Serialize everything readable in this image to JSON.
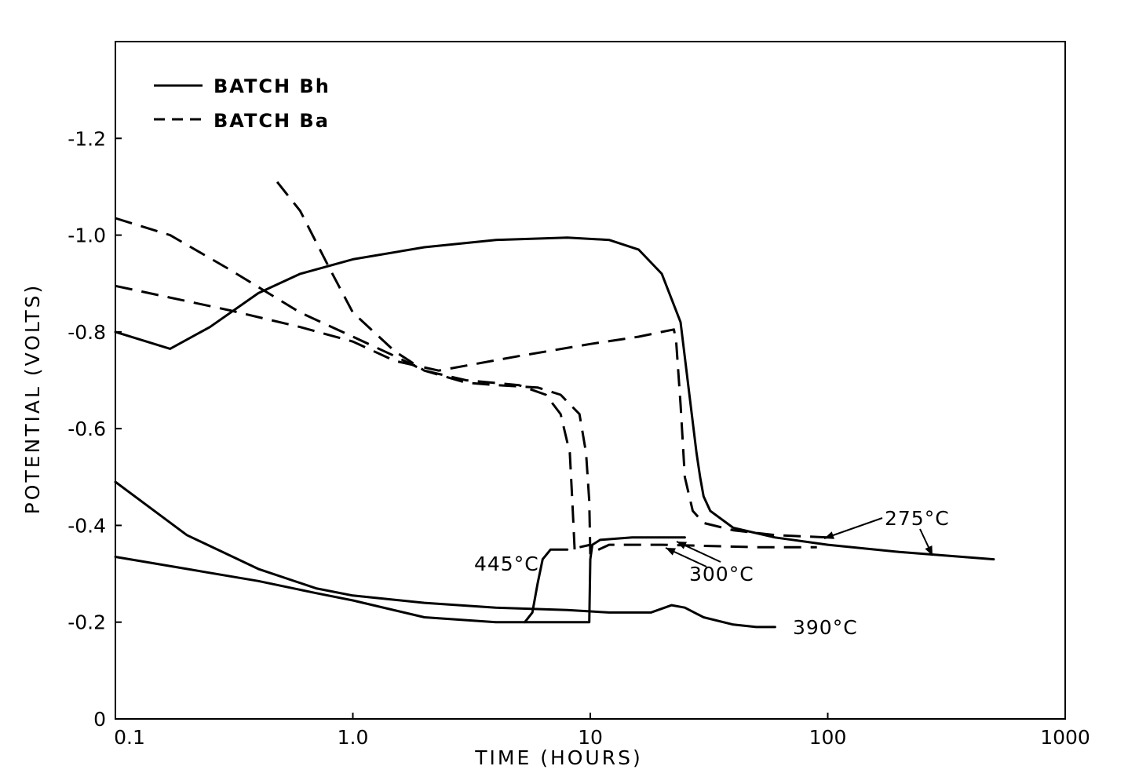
{
  "chart_data": {
    "type": "line",
    "title": "",
    "xlabel": "TIME (HOURS)",
    "ylabel": "POTENTIAL (VOLTS)",
    "x_scale": "log",
    "xlim": [
      0.1,
      1000
    ],
    "ylim": [
      0,
      -1.4
    ],
    "x_ticks": [
      "0.1",
      "1.0",
      "10",
      "100",
      "1000"
    ],
    "y_ticks": [
      "0",
      "-0.2",
      "-0.4",
      "-0.6",
      "-0.8",
      "-1.0",
      "-1.2"
    ],
    "grid": false,
    "legend_position": "top-left",
    "legend": [
      {
        "label": "BATCH Bh",
        "style": "solid"
      },
      {
        "label": "BATCH Ba",
        "style": "dashed"
      }
    ],
    "annotations": [
      "275°C",
      "300°C",
      "390°C",
      "445°C"
    ],
    "series": [
      {
        "batch": "BATCH Bh",
        "style": "solid",
        "temperature": "275°C",
        "x": [
          0.1,
          0.17,
          0.25,
          0.4,
          0.6,
          1.0,
          2.0,
          4.0,
          8.0,
          12,
          16,
          20,
          24,
          26,
          28,
          29,
          30,
          32,
          40,
          60,
          100,
          200,
          500
        ],
        "y": [
          -0.8,
          -0.765,
          -0.81,
          -0.88,
          -0.92,
          -0.95,
          -0.975,
          -0.99,
          -0.995,
          -0.99,
          -0.97,
          -0.92,
          -0.82,
          -0.68,
          -0.55,
          -0.5,
          -0.46,
          -0.43,
          -0.395,
          -0.375,
          -0.36,
          -0.345,
          -0.33
        ]
      },
      {
        "batch": "BATCH Ba",
        "style": "dashed",
        "temperature": "275°C",
        "x": [
          0.1,
          0.3,
          0.6,
          1.0,
          1.5,
          2.3,
          5.0,
          10,
          16,
          20,
          22.5,
          23,
          24,
          25,
          27,
          30,
          40,
          60,
          100
        ],
        "y": [
          -0.895,
          -0.845,
          -0.81,
          -0.78,
          -0.74,
          -0.72,
          -0.75,
          -0.775,
          -0.79,
          -0.8,
          -0.805,
          -0.78,
          -0.65,
          -0.5,
          -0.43,
          -0.405,
          -0.39,
          -0.38,
          -0.375
        ]
      },
      {
        "batch": "BATCH Bh",
        "style": "solid",
        "temperature": "300°C",
        "x": [
          0.1,
          0.2,
          0.4,
          0.7,
          1.0,
          2.0,
          4.0,
          6.0,
          8.0,
          9.0,
          9.5,
          9.9,
          10,
          10.2,
          11,
          15,
          20,
          25
        ],
        "y": [
          -0.335,
          -0.31,
          -0.285,
          -0.26,
          -0.245,
          -0.21,
          -0.2,
          -0.2,
          -0.2,
          -0.2,
          -0.2,
          -0.2,
          -0.33,
          -0.36,
          -0.37,
          -0.375,
          -0.375,
          -0.375
        ]
      },
      {
        "batch": "BATCH Ba",
        "style": "dashed",
        "temperature": "300°C",
        "x": [
          0.48,
          0.6,
          0.8,
          1.0,
          1.5,
          2.0,
          3.0,
          4.0,
          6.0,
          7.5,
          9.0,
          9.6,
          9.9,
          10,
          10.3,
          12,
          20,
          50,
          90
        ],
        "y": [
          -1.11,
          -1.05,
          -0.93,
          -0.84,
          -0.76,
          -0.72,
          -0.695,
          -0.69,
          -0.685,
          -0.67,
          -0.63,
          -0.55,
          -0.45,
          -0.34,
          -0.345,
          -0.36,
          -0.36,
          -0.355,
          -0.355
        ]
      },
      {
        "batch": "BATCH Ba",
        "style": "dashed",
        "temperature": "390°C",
        "x": [
          0.1,
          0.17,
          0.3,
          0.6,
          1.0,
          1.5,
          2.0,
          3.0,
          5.0,
          6.5,
          7.5,
          8.2,
          8.4,
          8.6,
          9.0,
          10
        ],
        "y": [
          -1.035,
          -1.0,
          -0.93,
          -0.84,
          -0.79,
          -0.75,
          -0.72,
          -0.7,
          -0.69,
          -0.67,
          -0.63,
          -0.55,
          -0.45,
          -0.345,
          -0.355,
          -0.36
        ]
      },
      {
        "batch": "BATCH Bh",
        "style": "solid",
        "temperature": "390°C",
        "x": [
          0.1,
          0.2,
          0.4,
          0.7,
          1.0,
          2.0,
          4.0,
          8.0,
          12,
          18,
          22,
          25,
          30,
          40,
          50,
          60
        ],
        "y": [
          -0.49,
          -0.38,
          -0.31,
          -0.27,
          -0.255,
          -0.24,
          -0.23,
          -0.225,
          -0.22,
          -0.22,
          -0.235,
          -0.23,
          -0.21,
          -0.195,
          -0.19,
          -0.19
        ]
      },
      {
        "batch": "BATCH Bh",
        "style": "solid",
        "temperature": "445°C",
        "x": [
          5.3,
          5.7,
          6.0,
          6.3,
          6.8,
          7.5,
          8.0
        ],
        "y": [
          -0.2,
          -0.22,
          -0.28,
          -0.33,
          -0.35,
          -0.35,
          -0.35
        ]
      }
    ]
  }
}
